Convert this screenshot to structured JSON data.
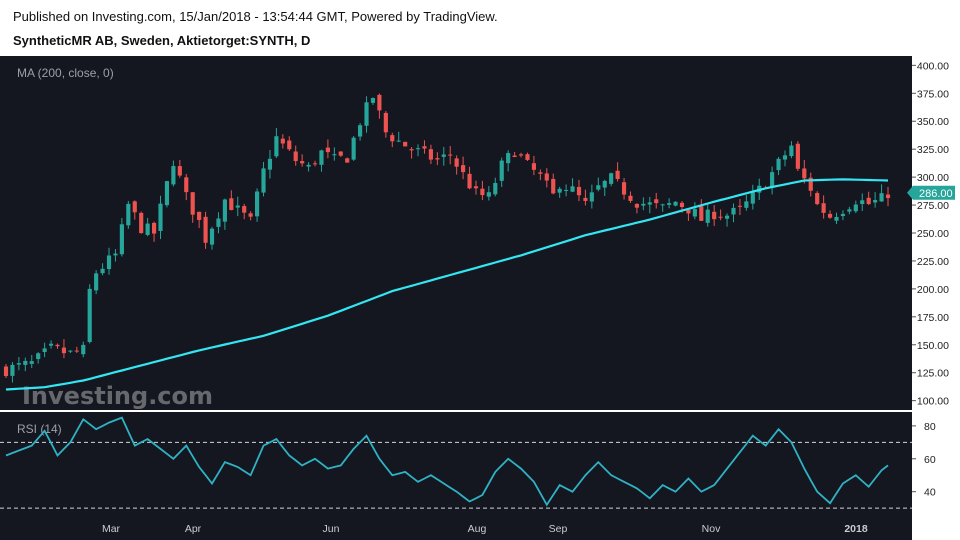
{
  "header": {
    "published": "Published on Investing.com, 15/Jan/2018 - 13:54:44 GMT, Powered by TradingView.",
    "symbol": "SyntheticMR AB, Sweden, Aktietorget:SYNTH, D"
  },
  "price_panel": {
    "indicator_label": "MA (200, close, 0)",
    "last_price_label": "286.00",
    "watermark": "Investing.com"
  },
  "rsi_panel": {
    "indicator_label": "RSI (14)"
  },
  "colors": {
    "background": "#141720",
    "up_candle": "#26a69a",
    "down_candle": "#ef5350",
    "ma_line": "#33e6f2",
    "rsi_line": "#2fb2c4",
    "price_tag": "#26a69a"
  },
  "chart_data": [
    {
      "type": "candlestick",
      "title": "SyntheticMR AB, Sweden, Aktietorget:SYNTH, D",
      "x_tick_labels": [
        "Mar",
        "Apr",
        "Jun",
        "Aug",
        "Sep",
        "Nov",
        "2018"
      ],
      "y_ticks": [
        100,
        125,
        150,
        175,
        200,
        225,
        250,
        275,
        300,
        325,
        350,
        375,
        400
      ],
      "ylim": [
        97,
        403
      ],
      "grid": false,
      "last_price": 286,
      "series": [
        {
          "name": "Price",
          "close_path": [
            [
              0,
              128
            ],
            [
              4,
              133
            ],
            [
              7,
              146
            ],
            [
              10,
              142
            ],
            [
              12,
              145
            ],
            [
              13,
              198
            ],
            [
              14,
              215
            ],
            [
              17,
              230
            ],
            [
              19,
              275
            ],
            [
              21,
              255
            ],
            [
              23,
              250
            ],
            [
              26,
              315
            ],
            [
              28,
              282
            ],
            [
              30,
              260
            ],
            [
              31,
              245
            ],
            [
              34,
              280
            ],
            [
              36,
              270
            ],
            [
              38,
              260
            ],
            [
              40,
              305
            ],
            [
              42,
              335
            ],
            [
              45,
              315
            ],
            [
              47,
              308
            ],
            [
              49,
              322
            ],
            [
              51,
              315
            ],
            [
              53,
              318
            ],
            [
              55,
              350
            ],
            [
              57,
              372
            ],
            [
              59,
              340
            ],
            [
              61,
              332
            ],
            [
              63,
              325
            ],
            [
              65,
              320
            ],
            [
              67,
              315
            ],
            [
              69,
              320
            ],
            [
              71,
              302
            ],
            [
              73,
              285
            ],
            [
              75,
              282
            ],
            [
              77,
              310
            ],
            [
              79,
              324
            ],
            [
              81,
              310
            ],
            [
              83,
              300
            ],
            [
              85,
              283
            ],
            [
              86,
              295
            ],
            [
              88,
              288
            ],
            [
              90,
              275
            ],
            [
              92,
              290
            ],
            [
              94,
              298
            ],
            [
              96,
              288
            ],
            [
              98,
              278
            ],
            [
              100,
              275
            ],
            [
              102,
              272
            ],
            [
              104,
              278
            ],
            [
              106,
              272
            ],
            [
              108,
              262
            ],
            [
              110,
              268
            ],
            [
              112,
              266
            ],
            [
              114,
              270
            ],
            [
              116,
              282
            ],
            [
              118,
              295
            ],
            [
              120,
              312
            ],
            [
              122,
              328
            ],
            [
              123,
              305
            ],
            [
              125,
              290
            ],
            [
              126,
              275
            ],
            [
              128,
              265
            ],
            [
              130,
              272
            ],
            [
              132,
              280
            ],
            [
              134,
              276
            ],
            [
              136,
              280
            ],
            [
              137,
              286
            ]
          ]
        },
        {
          "name": "MA (200, close, 0)",
          "path": [
            [
              0,
              110
            ],
            [
              6,
              112
            ],
            [
              12,
              118
            ],
            [
              20,
              130
            ],
            [
              30,
              145
            ],
            [
              40,
              158
            ],
            [
              50,
              176
            ],
            [
              60,
              198
            ],
            [
              70,
              214
            ],
            [
              80,
              230
            ],
            [
              90,
              248
            ],
            [
              100,
              262
            ],
            [
              110,
              278
            ],
            [
              118,
              290
            ],
            [
              124,
              297
            ],
            [
              130,
              298
            ],
            [
              137,
              297
            ]
          ]
        }
      ]
    },
    {
      "type": "line",
      "title": "RSI (14)",
      "y_ticks": [
        40,
        60,
        80
      ],
      "ylim": [
        24,
        86
      ],
      "reference_lines": [
        30,
        70
      ],
      "series": [
        {
          "name": "RSI (14)",
          "path": [
            [
              0,
              62
            ],
            [
              4,
              68
            ],
            [
              6,
              77
            ],
            [
              8,
              62
            ],
            [
              10,
              70
            ],
            [
              12,
              84
            ],
            [
              14,
              78
            ],
            [
              16,
              82
            ],
            [
              18,
              85
            ],
            [
              20,
              68
            ],
            [
              22,
              72
            ],
            [
              24,
              66
            ],
            [
              26,
              60
            ],
            [
              28,
              68
            ],
            [
              30,
              55
            ],
            [
              32,
              45
            ],
            [
              34,
              58
            ],
            [
              36,
              55
            ],
            [
              38,
              50
            ],
            [
              40,
              68
            ],
            [
              42,
              72
            ],
            [
              44,
              62
            ],
            [
              46,
              56
            ],
            [
              48,
              60
            ],
            [
              50,
              54
            ],
            [
              52,
              56
            ],
            [
              54,
              66
            ],
            [
              56,
              74
            ],
            [
              58,
              60
            ],
            [
              60,
              50
            ],
            [
              62,
              52
            ],
            [
              64,
              46
            ],
            [
              66,
              50
            ],
            [
              68,
              45
            ],
            [
              70,
              40
            ],
            [
              72,
              34
            ],
            [
              74,
              38
            ],
            [
              76,
              52
            ],
            [
              78,
              60
            ],
            [
              80,
              54
            ],
            [
              82,
              46
            ],
            [
              84,
              32
            ],
            [
              86,
              44
            ],
            [
              88,
              40
            ],
            [
              90,
              50
            ],
            [
              92,
              58
            ],
            [
              94,
              50
            ],
            [
              96,
              46
            ],
            [
              98,
              42
            ],
            [
              100,
              36
            ],
            [
              102,
              44
            ],
            [
              104,
              40
            ],
            [
              106,
              48
            ],
            [
              108,
              40
            ],
            [
              110,
              44
            ],
            [
              112,
              54
            ],
            [
              114,
              64
            ],
            [
              116,
              74
            ],
            [
              118,
              68
            ],
            [
              120,
              78
            ],
            [
              122,
              70
            ],
            [
              124,
              54
            ],
            [
              126,
              40
            ],
            [
              128,
              33
            ],
            [
              130,
              45
            ],
            [
              132,
              50
            ],
            [
              134,
              43
            ],
            [
              136,
              53
            ],
            [
              137,
              56
            ]
          ]
        }
      ]
    }
  ]
}
